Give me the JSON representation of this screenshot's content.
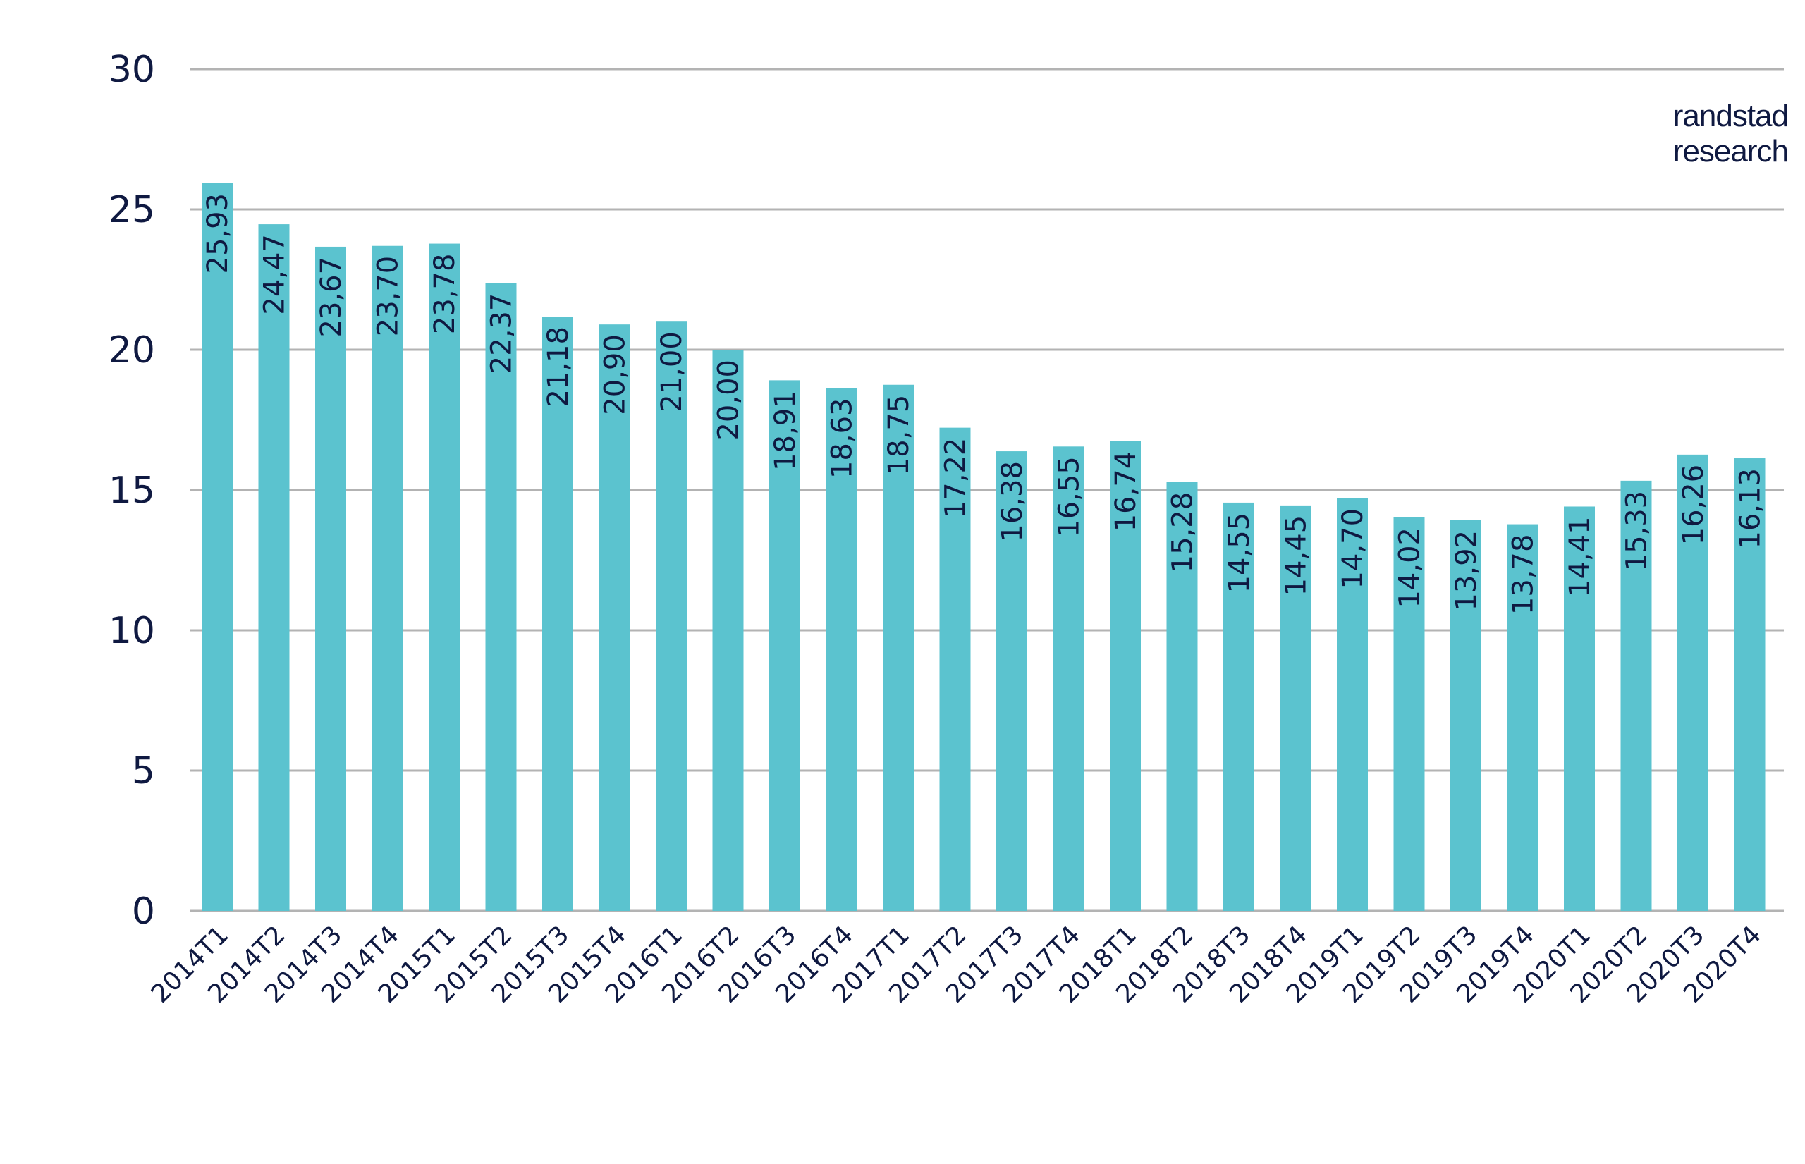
{
  "brand": {
    "line1": "randstad",
    "line2": "research"
  },
  "colors": {
    "bar": "#5bc3cf",
    "grid": "#b3b3b3",
    "text": "#0f1941"
  },
  "chart_data": {
    "type": "bar",
    "categories": [
      "2014T1",
      "2014T2",
      "2014T3",
      "2014T4",
      "2015T1",
      "2015T2",
      "2015T3",
      "2015T4",
      "2016T1",
      "2016T2",
      "2016T3",
      "2016T4",
      "2017T1",
      "2017T2",
      "2017T3",
      "2017T4",
      "2018T1",
      "2018T2",
      "2018T3",
      "2018T4",
      "2019T1",
      "2019T2",
      "2019T3",
      "2019T4",
      "2020T1",
      "2020T2",
      "2020T3",
      "2020T4"
    ],
    "values": [
      25.93,
      24.47,
      23.67,
      23.7,
      23.78,
      22.37,
      21.18,
      20.9,
      21.0,
      20.0,
      18.91,
      18.63,
      18.75,
      17.22,
      16.38,
      16.55,
      16.74,
      15.28,
      14.55,
      14.45,
      14.7,
      14.02,
      13.92,
      13.78,
      14.41,
      15.33,
      16.26,
      16.13
    ],
    "data_labels": [
      "25,93",
      "24,47",
      "23,67",
      "23,70",
      "23,78",
      "22,37",
      "21,18",
      "20,90",
      "21,00",
      "20,00",
      "18,91",
      "18,63",
      "18,75",
      "17,22",
      "16,38",
      "16,55",
      "16,74",
      "15,28",
      "14,55",
      "14,45",
      "14,70",
      "14,02",
      "13,92",
      "13,78",
      "14,41",
      "15,33",
      "16,26",
      "16,13"
    ],
    "yticks": [
      "0",
      "5",
      "10",
      "15",
      "20",
      "25",
      "30"
    ],
    "ylim": [
      0,
      30
    ],
    "grid": true,
    "title": "",
    "xlabel": "",
    "ylabel": ""
  }
}
